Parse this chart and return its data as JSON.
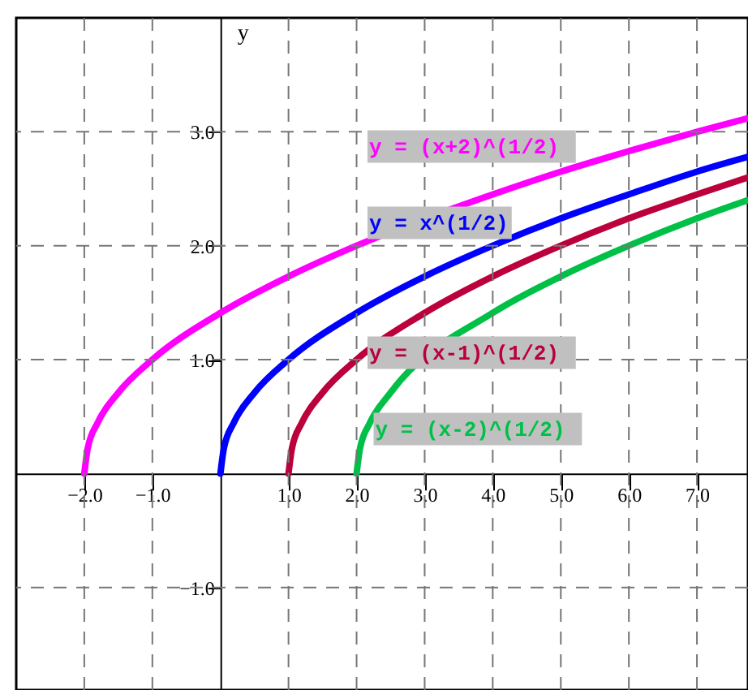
{
  "chart_data": {
    "type": "line",
    "ylabel": "y",
    "xlim": [
      -3,
      7.75
    ],
    "ylim": [
      -1.9,
      4
    ],
    "xticks": [
      {
        "value": -2,
        "label": "−2.0"
      },
      {
        "value": -1,
        "label": "−1.0"
      },
      {
        "value": 1,
        "label": "1.0"
      },
      {
        "value": 2,
        "label": "2.0"
      },
      {
        "value": 3,
        "label": "3.0"
      },
      {
        "value": 4,
        "label": "4.0"
      },
      {
        "value": 5,
        "label": "5.0"
      },
      {
        "value": 6,
        "label": "6.0"
      },
      {
        "value": 7,
        "label": "7.0"
      }
    ],
    "yticks": [
      {
        "value": -1,
        "label": "−1.0"
      },
      {
        "value": 1,
        "label": "1.0"
      },
      {
        "value": 2,
        "label": "2.0"
      },
      {
        "value": 3,
        "label": "3.0"
      }
    ],
    "grid": true,
    "line_style": "solid",
    "marker": "none",
    "series": [
      {
        "name": "y =  (x+2)^(1/2)",
        "color": "#ff00ff",
        "x": [
          -2,
          -1.95,
          -1.8,
          -1.5,
          -1,
          0,
          1,
          2,
          4,
          5,
          6,
          7,
          7.75
        ],
        "values": [
          0,
          0.22,
          0.45,
          0.71,
          1,
          1.41,
          1.73,
          2,
          2.45,
          2.65,
          2.83,
          3,
          3.12
        ]
      },
      {
        "name": "y = x^(1/2)",
        "color": "#0000ff",
        "x": [
          0,
          0.05,
          0.2,
          0.5,
          1,
          2,
          3,
          4,
          5,
          6,
          7,
          7.75
        ],
        "values": [
          0,
          0.22,
          0.45,
          0.71,
          1,
          1.41,
          1.73,
          2,
          2.24,
          2.45,
          2.65,
          2.78
        ]
      },
      {
        "name": "y =  (x-1)^(1/2)",
        "color": "#bb003c",
        "x": [
          1,
          1.05,
          1.2,
          1.5,
          2,
          3,
          4,
          5,
          6,
          7,
          7.75
        ],
        "values": [
          0,
          0.22,
          0.45,
          0.71,
          1,
          1.41,
          1.73,
          2,
          2.24,
          2.45,
          2.6
        ]
      },
      {
        "name": "y =  (x-2)^(1/2)",
        "color": "#00c048",
        "x": [
          2,
          2.05,
          2.2,
          2.5,
          4,
          5,
          6,
          7,
          7.75
        ],
        "values": [
          0,
          0.22,
          0.45,
          0.71,
          1.41,
          1.73,
          2,
          2.24,
          2.4
        ]
      }
    ]
  }
}
